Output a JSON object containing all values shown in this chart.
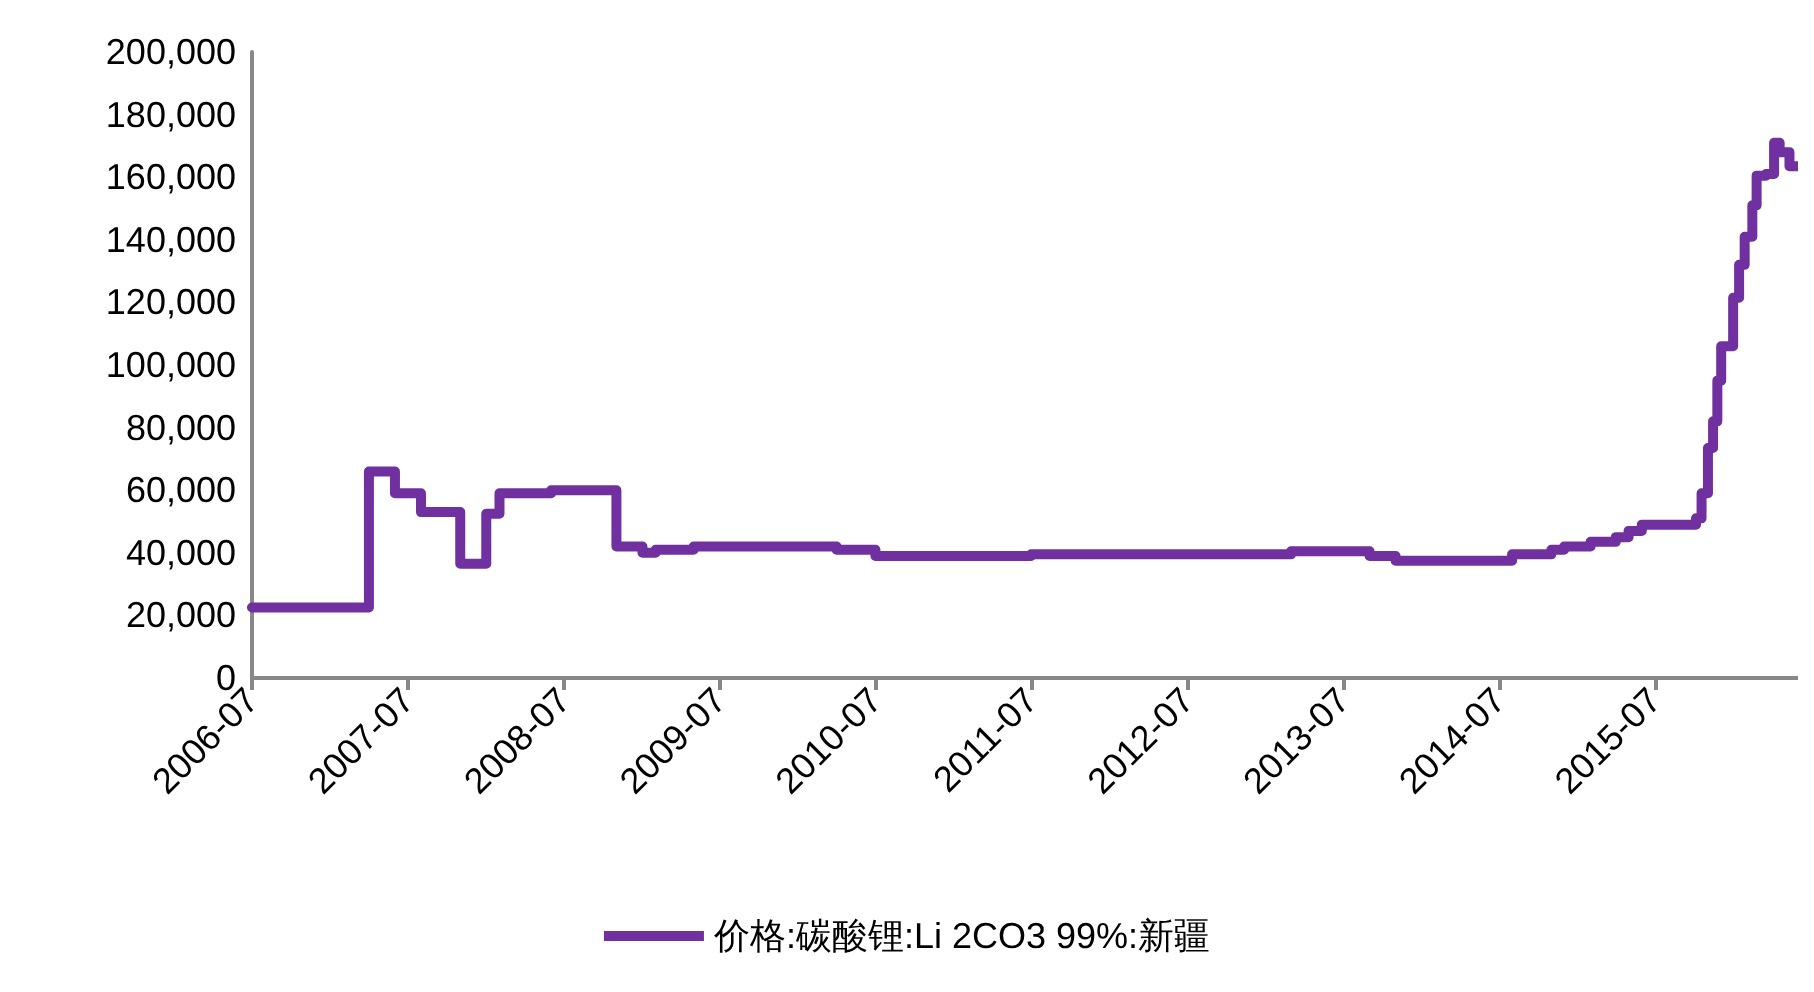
{
  "chart_data": {
    "type": "step",
    "x": [
      "2006-07-01",
      "2007-04-01",
      "2007-06-01",
      "2007-08-01",
      "2007-11-01",
      "2008-01-01",
      "2008-02-01",
      "2008-06-01",
      "2008-11-01",
      "2009-01-01",
      "2009-02-01",
      "2009-05-01",
      "2010-04-01",
      "2010-07-01",
      "2011-07-01",
      "2013-03-01",
      "2013-09-01",
      "2013-11-01",
      "2014-08-01",
      "2014-11-01",
      "2014-12-01",
      "2015-02-01",
      "2015-04-01",
      "2015-05-01",
      "2015-06-01",
      "2015-10-06",
      "2015-10-19",
      "2015-11-03",
      "2015-11-15",
      "2015-11-25",
      "2015-12-04",
      "2016-01-01",
      "2016-01-15",
      "2016-01-28",
      "2016-02-15",
      "2016-02-25",
      "2016-03-18",
      "2016-04-06",
      "2016-04-19",
      "2016-05-12",
      "2016-06-01"
    ],
    "series": [
      {
        "name": "价格:碳酸锂:Li 2CO3 99%:新疆",
        "color": "#7030a0",
        "values": [
          22500,
          66000,
          59000,
          53000,
          36500,
          52500,
          59000,
          60000,
          42000,
          40000,
          41000,
          42000,
          41000,
          39000,
          39500,
          40500,
          39000,
          37500,
          39500,
          41000,
          42000,
          43500,
          45000,
          47000,
          49000,
          51000,
          59000,
          73500,
          82000,
          95000,
          106000,
          121500,
          132000,
          141000,
          151000,
          160500,
          161000,
          171000,
          168000,
          163500,
          163500
        ]
      }
    ],
    "xlim": [
      "2006-07-01",
      "2016-06-01"
    ],
    "xticks": [
      "2006-07",
      "2007-07",
      "2008-07",
      "2009-07",
      "2010-07",
      "2011-07",
      "2012-07",
      "2013-07",
      "2014-07",
      "2015-07"
    ],
    "ylim": [
      0,
      200000
    ],
    "yticks": [
      0,
      {
        "value": 20000,
        "label": "20,000"
      },
      {
        "value": 40000,
        "label": "40,000"
      },
      {
        "value": 60000,
        "label": "60,000"
      },
      {
        "value": 80000,
        "label": "80,000"
      },
      {
        "value": 100000,
        "label": "100,000"
      },
      {
        "value": 120000,
        "label": "120,000"
      },
      {
        "value": 140000,
        "label": "140,000"
      },
      {
        "value": 160000,
        "label": "160,000"
      },
      {
        "value": 180000,
        "label": "180,000"
      },
      {
        "value": 200000,
        "label": "200,000"
      }
    ],
    "grid": false,
    "legend": "bottom",
    "marker": "none",
    "line_style": "solid"
  }
}
